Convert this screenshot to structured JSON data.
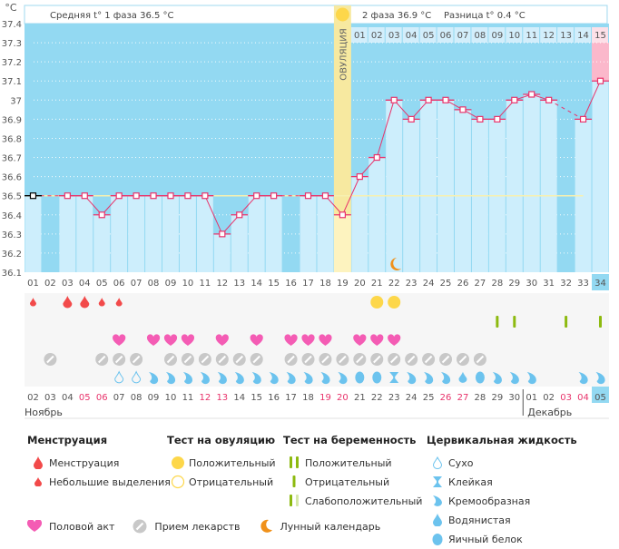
{
  "header": {
    "unit_label": "°C",
    "phase1_label": "Средняя t° 1 фаза 36.5 °C",
    "phase2_label": "2 фаза 36.9 °C",
    "difference_label": "Разница t° 0.4 °C",
    "ovulation_label": "ОВУЛЯЦИЯ"
  },
  "colors": {
    "sky": "#93d9f2",
    "column": "#cdeefc",
    "ovulation": "#fdf3bf",
    "ovulation_bar": "#f7e9a0",
    "line": "#e8336b",
    "pink_zone": "#fbb8cb",
    "coverline": "#f7f0b0",
    "weekend": "#e8336b"
  },
  "chart_data": {
    "type": "line",
    "title": "",
    "xlabel": "Cycle day",
    "ylabel": "°C",
    "ylim": [
      36.1,
      37.4
    ],
    "yticks": [
      "37.4",
      "37.3",
      "37.2",
      "37.1",
      "37",
      "36.9",
      "36.8",
      "36.7",
      "36.6",
      "36.5",
      "36.4",
      "36.3",
      "36.2",
      "36.1"
    ],
    "grid": true,
    "coverline": 36.5,
    "ovulation_day": 19,
    "cycle_days": [
      "01",
      "02",
      "03",
      "04",
      "05",
      "06",
      "07",
      "08",
      "09",
      "10",
      "11",
      "12",
      "13",
      "14",
      "15",
      "16",
      "17",
      "18",
      "19",
      "20",
      "21",
      "22",
      "23",
      "24",
      "25",
      "26",
      "27",
      "28",
      "29",
      "30",
      "31",
      "32",
      "33",
      "34"
    ],
    "phase2_days": [
      "01",
      "02",
      "03",
      "04",
      "05",
      "06",
      "07",
      "08",
      "09",
      "10",
      "11",
      "12",
      "13",
      "14",
      "15"
    ],
    "current_day": "34",
    "series": [
      {
        "name": "Базальная температура",
        "values": [
          36.5,
          null,
          36.5,
          36.5,
          36.4,
          36.5,
          36.5,
          36.5,
          36.5,
          36.5,
          36.5,
          36.3,
          36.4,
          36.5,
          36.5,
          null,
          36.5,
          36.5,
          36.4,
          36.6,
          36.7,
          37.0,
          36.9,
          37.0,
          37.0,
          36.95,
          36.9,
          36.9,
          37.0,
          37.03,
          37.0,
          null,
          36.9,
          37.1
        ]
      }
    ],
    "dates": [
      "02",
      "03",
      "04",
      "05",
      "06",
      "07",
      "08",
      "09",
      "10",
      "11",
      "12",
      "13",
      "14",
      "15",
      "16",
      "17",
      "18",
      "19",
      "20",
      "21",
      "22",
      "23",
      "24",
      "25",
      "26",
      "27",
      "28",
      "29",
      "30",
      "01",
      "02",
      "03",
      "04",
      "05"
    ],
    "weekend_dates_idx": [
      3,
      4,
      10,
      11,
      17,
      18,
      24,
      25,
      31,
      32
    ],
    "months": [
      "Ноябрь",
      "Декабрь"
    ],
    "moon_day": 22
  },
  "markers": {
    "menstruation": {
      "3": "big",
      "4": "big",
      "1": "small",
      "5": "small",
      "6": "small"
    },
    "ovulation_test_positive_days": [
      21,
      22
    ],
    "pregnancy_test_negative_days": [
      28,
      29,
      32,
      34
    ],
    "intercourse_days": [
      6,
      8,
      9,
      10,
      12,
      14,
      16,
      17,
      18,
      20,
      21,
      22
    ],
    "medication_days": [
      2,
      5,
      6,
      7,
      9,
      10,
      11,
      12,
      13,
      14,
      16,
      17,
      18,
      19,
      20,
      21,
      22,
      23,
      24,
      25,
      26,
      27
    ],
    "fluid": {
      "6": "dry",
      "7": "dry",
      "8": "creamy",
      "9": "creamy",
      "10": "creamy",
      "11": "creamy",
      "12": "creamy",
      "13": "creamy",
      "14": "creamy",
      "15": "creamy",
      "16": "creamy",
      "17": "creamy",
      "18": "creamy",
      "19": "creamy",
      "20": "egg",
      "21": "egg",
      "22": "sticky",
      "23": "creamy",
      "24": "creamy",
      "25": "creamy",
      "26": "watery",
      "27": "egg",
      "28": "creamy",
      "29": "creamy",
      "30": "creamy",
      "33": "creamy",
      "34": "creamy"
    }
  },
  "legend": {
    "menstruation": {
      "title": "Менструация",
      "items": [
        "Менструация",
        "Небольшие выделения"
      ]
    },
    "ovulation_test": {
      "title": "Тест на овуляцию",
      "items": [
        "Положительный",
        "Отрицательный"
      ]
    },
    "pregnancy_test": {
      "title": "Тест на беременность",
      "items": [
        "Положительный",
        "Отрицательный",
        "Слабоположительный"
      ]
    },
    "cervical_fluid": {
      "title": "Цервикальная жидкость",
      "items": [
        "Сухо",
        "Клейкая",
        "Кремообразная",
        "Водянистая",
        "Яичный белок"
      ]
    },
    "bottom": [
      "Половой акт",
      "Прием лекарств",
      "Лунный календарь"
    ]
  }
}
